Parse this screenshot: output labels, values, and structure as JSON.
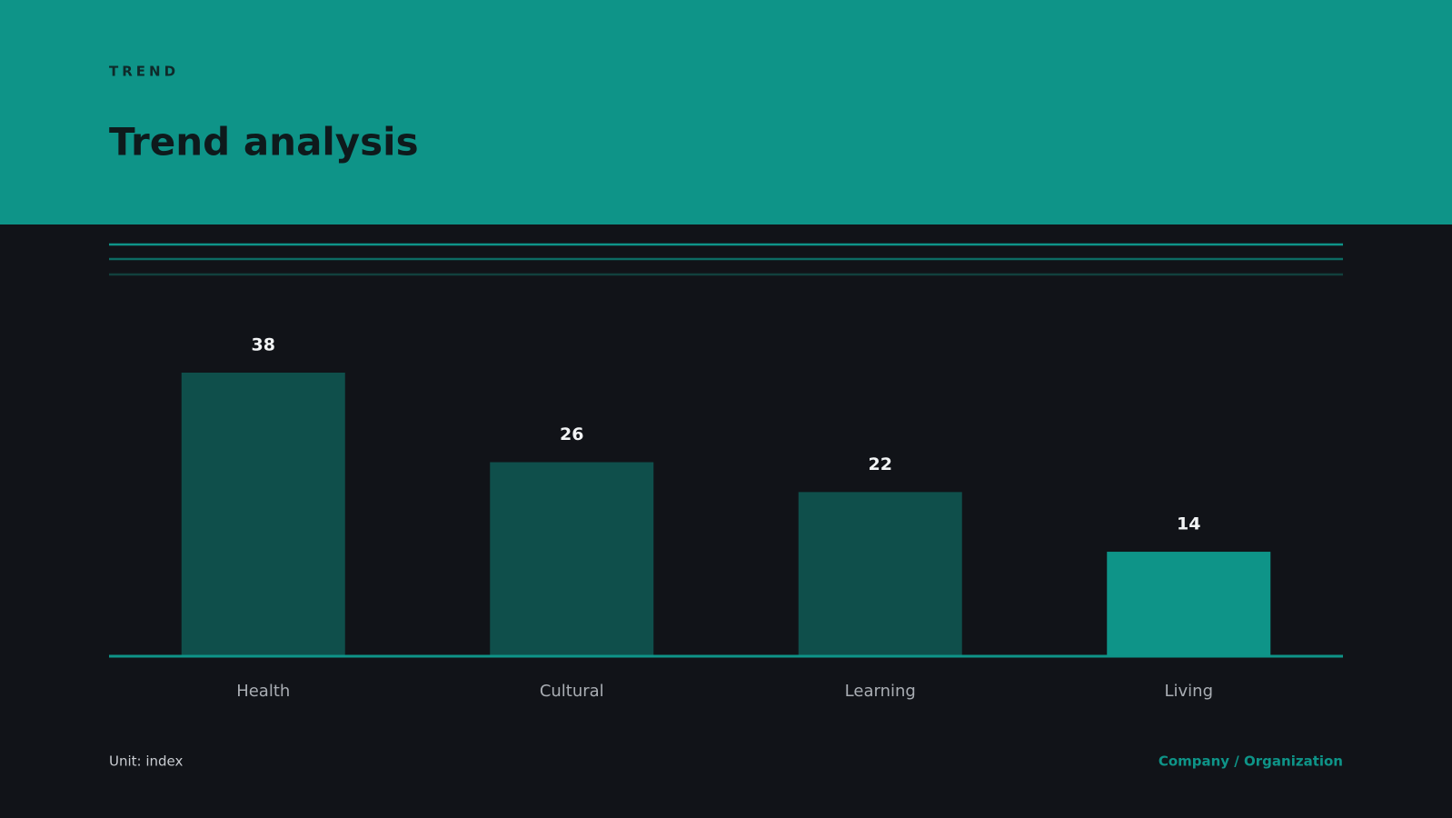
{
  "eyebrow": "TREND",
  "footer": {
    "unit": "Unit: index",
    "source": "Company / Organization"
  },
  "chart_data": {
    "type": "bar",
    "title": "Trend analysis",
    "categories": [
      "Health",
      "Cultural",
      "Learning",
      "Living"
    ],
    "values": [
      38,
      26,
      22,
      14
    ],
    "colors": [
      "#0f4f4b",
      "#0f4f4b",
      "#0f4f4b",
      "#0e9488"
    ]
  }
}
